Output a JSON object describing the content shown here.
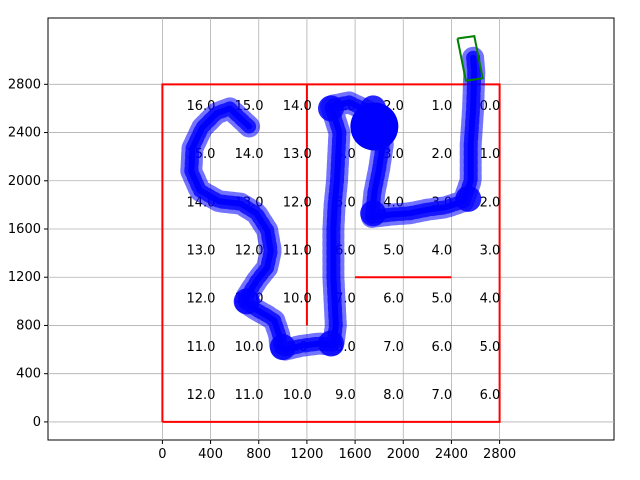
{
  "chart_data": {
    "type": "scatter",
    "title": "",
    "xlabel": "",
    "ylabel": "",
    "xlim": [
      -950,
      3750
    ],
    "ylim": [
      -150,
      3350
    ],
    "grid": true,
    "x_ticks": [
      0,
      400,
      800,
      1200,
      1600,
      2000,
      2400,
      2800
    ],
    "y_ticks": [
      0,
      400,
      800,
      1200,
      1600,
      2000,
      2400,
      2800
    ],
    "colors": {
      "boundary": "#ff0000",
      "path": "#0000ff",
      "goal_box": "#008000",
      "grid": "#b0b0b0"
    },
    "boundary": [
      [
        0,
        0
      ],
      [
        2800,
        0
      ],
      [
        2800,
        2800
      ],
      [
        0,
        2800
      ],
      [
        0,
        0
      ]
    ],
    "walls": [
      [
        [
          1200,
          800
        ],
        [
          1200,
          2800
        ]
      ],
      [
        [
          1600,
          1200
        ],
        [
          2400,
          1200
        ]
      ]
    ],
    "cell_values": [
      {
        "x": 320,
        "y": 2630,
        "v": "16.0"
      },
      {
        "x": 720,
        "y": 2630,
        "v": "15.0"
      },
      {
        "x": 1120,
        "y": 2630,
        "v": "14.0"
      },
      {
        "x": 1520,
        "y": 2630,
        "v": "3.0"
      },
      {
        "x": 1920,
        "y": 2630,
        "v": "2.0"
      },
      {
        "x": 2320,
        "y": 2630,
        "v": "1.0"
      },
      {
        "x": 2720,
        "y": 2630,
        "v": "0.0"
      },
      {
        "x": 320,
        "y": 2230,
        "v": "15.0"
      },
      {
        "x": 720,
        "y": 2230,
        "v": "14.0"
      },
      {
        "x": 1120,
        "y": 2230,
        "v": "13.0"
      },
      {
        "x": 1520,
        "y": 2230,
        "v": "4.0"
      },
      {
        "x": 1920,
        "y": 2230,
        "v": "3.0"
      },
      {
        "x": 2320,
        "y": 2230,
        "v": "2.0"
      },
      {
        "x": 2720,
        "y": 2230,
        "v": "1.0"
      },
      {
        "x": 320,
        "y": 1830,
        "v": "14.0"
      },
      {
        "x": 720,
        "y": 1830,
        "v": "13.0"
      },
      {
        "x": 1120,
        "y": 1830,
        "v": "12.0"
      },
      {
        "x": 1520,
        "y": 1830,
        "v": "5.0"
      },
      {
        "x": 1920,
        "y": 1830,
        "v": "4.0"
      },
      {
        "x": 2320,
        "y": 1830,
        "v": "3.0"
      },
      {
        "x": 2720,
        "y": 1830,
        "v": "2.0"
      },
      {
        "x": 320,
        "y": 1430,
        "v": "13.0"
      },
      {
        "x": 720,
        "y": 1430,
        "v": "12.0"
      },
      {
        "x": 1120,
        "y": 1430,
        "v": "11.0"
      },
      {
        "x": 1520,
        "y": 1430,
        "v": "6.0"
      },
      {
        "x": 1920,
        "y": 1430,
        "v": "5.0"
      },
      {
        "x": 2320,
        "y": 1430,
        "v": "4.0"
      },
      {
        "x": 2720,
        "y": 1430,
        "v": "3.0"
      },
      {
        "x": 320,
        "y": 1030,
        "v": "12.0"
      },
      {
        "x": 720,
        "y": 1030,
        "v": "11.0"
      },
      {
        "x": 1120,
        "y": 1030,
        "v": "10.0"
      },
      {
        "x": 1520,
        "y": 1030,
        "v": "7.0"
      },
      {
        "x": 1920,
        "y": 1030,
        "v": "6.0"
      },
      {
        "x": 2320,
        "y": 1030,
        "v": "5.0"
      },
      {
        "x": 2720,
        "y": 1030,
        "v": "4.0"
      },
      {
        "x": 320,
        "y": 630,
        "v": "11.0"
      },
      {
        "x": 720,
        "y": 630,
        "v": "10.0"
      },
      {
        "x": 1120,
        "y": 630,
        "v": "9.0"
      },
      {
        "x": 1520,
        "y": 630,
        "v": "8.0"
      },
      {
        "x": 1920,
        "y": 630,
        "v": "7.0"
      },
      {
        "x": 2320,
        "y": 630,
        "v": "6.0"
      },
      {
        "x": 2720,
        "y": 630,
        "v": "5.0"
      },
      {
        "x": 320,
        "y": 230,
        "v": "12.0"
      },
      {
        "x": 720,
        "y": 230,
        "v": "11.0"
      },
      {
        "x": 1120,
        "y": 230,
        "v": "10.0"
      },
      {
        "x": 1520,
        "y": 230,
        "v": "9.0"
      },
      {
        "x": 1920,
        "y": 230,
        "v": "8.0"
      },
      {
        "x": 2320,
        "y": 230,
        "v": "7.0"
      },
      {
        "x": 2720,
        "y": 230,
        "v": "6.0"
      }
    ],
    "path": [
      [
        720,
        2450
      ],
      [
        560,
        2600
      ],
      [
        450,
        2560
      ],
      [
        330,
        2440
      ],
      [
        250,
        2270
      ],
      [
        240,
        2080
      ],
      [
        310,
        1920
      ],
      [
        470,
        1830
      ],
      [
        650,
        1810
      ],
      [
        780,
        1730
      ],
      [
        870,
        1590
      ],
      [
        900,
        1420
      ],
      [
        870,
        1280
      ],
      [
        790,
        1180
      ],
      [
        700,
        1040
      ],
      [
        690,
        990
      ],
      [
        780,
        930
      ],
      [
        870,
        880
      ],
      [
        930,
        840
      ],
      [
        970,
        720
      ],
      [
        980,
        620
      ],
      [
        1020,
        600
      ],
      [
        1150,
        630
      ],
      [
        1300,
        650
      ],
      [
        1420,
        640
      ],
      [
        1440,
        800
      ],
      [
        1430,
        1000
      ],
      [
        1420,
        1200
      ],
      [
        1420,
        1400
      ],
      [
        1420,
        1600
      ],
      [
        1430,
        1800
      ],
      [
        1450,
        2000
      ],
      [
        1460,
        2200
      ],
      [
        1470,
        2400
      ],
      [
        1400,
        2620
      ],
      [
        1550,
        2650
      ],
      [
        1700,
        2580
      ],
      [
        1800,
        2450
      ],
      [
        1830,
        2300
      ],
      [
        1800,
        2100
      ],
      [
        1760,
        1900
      ],
      [
        1740,
        1700
      ],
      [
        1900,
        1720
      ],
      [
        2050,
        1730
      ],
      [
        2200,
        1760
      ],
      [
        2350,
        1780
      ],
      [
        2500,
        1830
      ],
      [
        2560,
        2000
      ],
      [
        2560,
        2300
      ],
      [
        2580,
        2600
      ],
      [
        2590,
        2900
      ],
      [
        2580,
        3020
      ]
    ],
    "goal_box": [
      [
        2450,
        3180
      ],
      [
        2590,
        3200
      ],
      [
        2660,
        2850
      ],
      [
        2520,
        2830
      ],
      [
        2450,
        3180
      ]
    ]
  }
}
